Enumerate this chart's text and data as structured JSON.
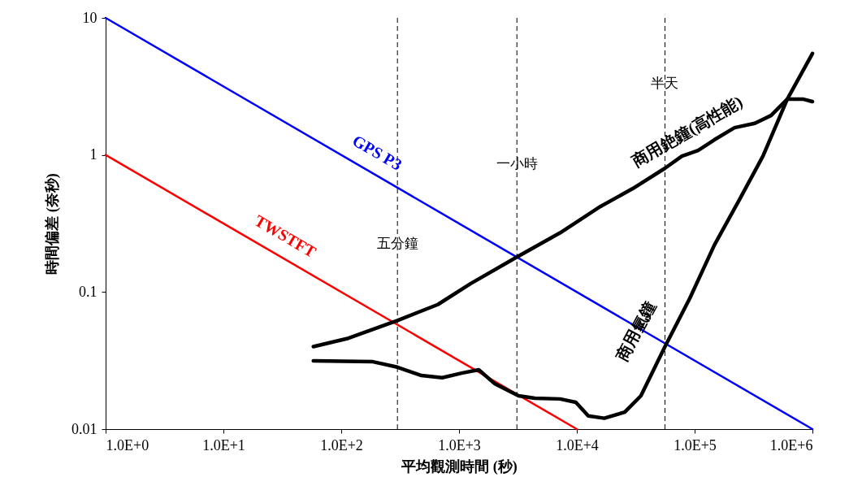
{
  "chart_data": {
    "type": "line",
    "xlabel": "平均觀測時間 (秒)",
    "ylabel": "時間偏差 (奈秒)",
    "log": "xy",
    "grid": false,
    "legend": false,
    "marker": "none",
    "line_style": "solid",
    "xlim": [
      1,
      1000000
    ],
    "ylim": [
      0.01,
      10
    ],
    "xticks": [
      {
        "value": 1,
        "label": "1.0E+0"
      },
      {
        "value": 10,
        "label": "1.0E+1"
      },
      {
        "value": 100,
        "label": "1.0E+2"
      },
      {
        "value": 1000,
        "label": "1.0E+3"
      },
      {
        "value": 10000,
        "label": "1.0E+4"
      },
      {
        "value": 100000,
        "label": "1.0E+5"
      },
      {
        "value": 1000000,
        "label": "1.0E+6"
      }
    ],
    "yticks": [
      0.01,
      0.1,
      1,
      10
    ],
    "series": [
      {
        "name": "GPS P3",
        "color": "#0000ff",
        "x": [
          1,
          1000000
        ],
        "values": [
          10,
          0.01
        ]
      },
      {
        "name": "TWSTFT",
        "color": "#ff0000",
        "x": [
          1,
          10000
        ],
        "values": [
          1,
          0.01
        ]
      },
      {
        "name": "商用銫鐘(高性能)",
        "color": "#000000",
        "x": [
          58,
          115,
          300,
          660,
          1250,
          3100,
          7200,
          15800,
          30000,
          56000,
          78000,
          107000,
          147000,
          218000,
          324000,
          445000,
          611000,
          840000,
          1000000
        ],
        "values": [
          0.04,
          0.046,
          0.062,
          0.081,
          0.115,
          0.18,
          0.27,
          0.42,
          0.57,
          0.8,
          0.98,
          1.08,
          1.29,
          1.58,
          1.7,
          1.94,
          2.55,
          2.55,
          2.45
        ]
      },
      {
        "name": "商用氫鐘",
        "color": "#000000",
        "x": [
          58,
          186,
          300,
          480,
          720,
          1070,
          1470,
          2000,
          3200,
          4400,
          7200,
          9800,
          12500,
          17100,
          25500,
          35000,
          56000,
          91000,
          147000,
          236000,
          380000,
          611000,
          1000000
        ],
        "values": [
          0.0315,
          0.031,
          0.0283,
          0.0246,
          0.0237,
          0.0257,
          0.0271,
          0.0215,
          0.0175,
          0.0168,
          0.0166,
          0.0157,
          0.0125,
          0.012,
          0.0133,
          0.0175,
          0.04,
          0.09,
          0.22,
          0.46,
          0.98,
          2.55,
          5.5
        ]
      }
    ],
    "ref_lines": [
      {
        "axis": "x",
        "value": 300,
        "label": "五分鐘",
        "color": "#000000",
        "line_style": "dashed"
      },
      {
        "axis": "x",
        "value": 3100,
        "label": "一小時",
        "color": "#000000",
        "line_style": "dashed"
      },
      {
        "axis": "x",
        "value": 56000,
        "label": "半天",
        "color": "#000000",
        "line_style": "dashed"
      }
    ]
  }
}
